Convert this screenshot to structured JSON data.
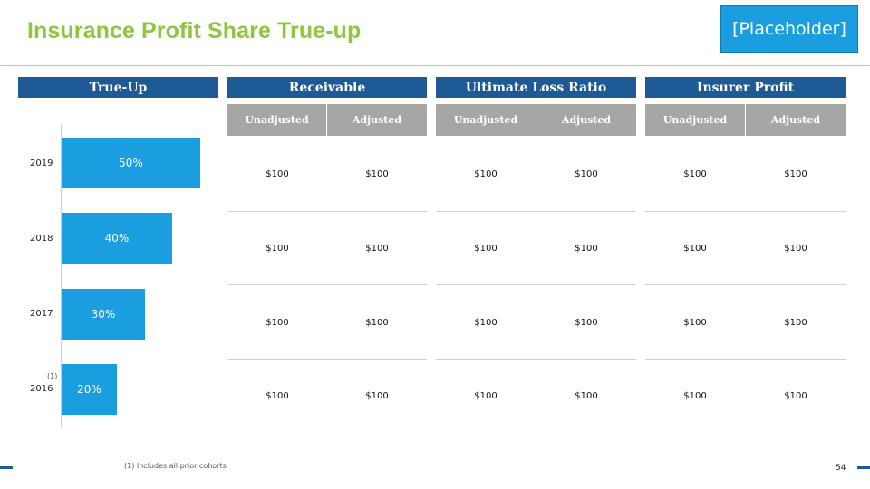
{
  "title": "Insurance Profit Share True-up",
  "placeholder": "[Placeholder]",
  "sections": {
    "trueup": "True-Up",
    "receivable": "Receivable",
    "ulr": "Ultimate Loss Ratio",
    "profit": "Insurer Profit"
  },
  "columns": {
    "unadjusted": "Unadjusted",
    "adjusted": "Adjusted"
  },
  "table": {
    "rows": [
      {
        "year": "2019",
        "receivable": [
          "$100",
          "$100"
        ],
        "ulr": [
          "$100",
          "$100"
        ],
        "profit": [
          "$100",
          "$100"
        ]
      },
      {
        "year": "2018",
        "receivable": [
          "$100",
          "$100"
        ],
        "ulr": [
          "$100",
          "$100"
        ],
        "profit": [
          "$100",
          "$100"
        ]
      },
      {
        "year": "2017",
        "receivable": [
          "$100",
          "$100"
        ],
        "ulr": [
          "$100",
          "$100"
        ],
        "profit": [
          "$100",
          "$100"
        ]
      },
      {
        "year": "2016",
        "receivable": [
          "$100",
          "$100"
        ],
        "ulr": [
          "$100",
          "$100"
        ],
        "profit": [
          "$100",
          "$100"
        ]
      }
    ]
  },
  "chart_data": {
    "type": "bar",
    "orientation": "horizontal",
    "categories": [
      "2019",
      "2018",
      "2017",
      "2016"
    ],
    "values": [
      50,
      40,
      30,
      20
    ],
    "value_labels": [
      "50%",
      "40%",
      "30%",
      "20%"
    ],
    "bar_color": "#1a9ee0",
    "xlim": [
      0,
      50
    ]
  },
  "footnote_marker": "(1)",
  "footnote": "(1) Includes all prior cohorts",
  "page_number": "54",
  "colors": {
    "title": "#8dc63f",
    "header": "#1e5a96",
    "subheader": "#a6a6a6",
    "accent": "#1a9ee0"
  }
}
